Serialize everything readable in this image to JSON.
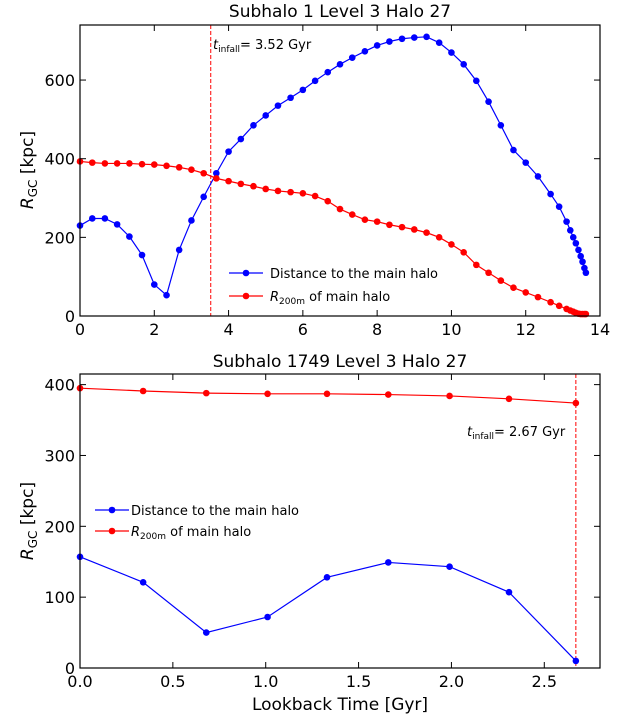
{
  "chart_data": [
    {
      "type": "line",
      "title": "Subhalo 1 Level 3 Halo 27",
      "xlabel": "",
      "ylabel_main": "R",
      "ylabel_sub": "GC",
      "ylabel_rest": " [kpc]",
      "xlim": [
        0,
        14
      ],
      "ylim": [
        0,
        740
      ],
      "xticks": [
        0,
        2,
        4,
        6,
        8,
        10,
        12,
        14
      ],
      "xtick_labels": [
        "0",
        "2",
        "4",
        "6",
        "8",
        "10",
        "12",
        "14"
      ],
      "yticks": [
        0,
        200,
        400,
        600
      ],
      "ytick_labels": [
        "0",
        "200",
        "400",
        "600"
      ],
      "legend_position": "lower-center",
      "infall": {
        "x": 3.52,
        "label_t": "t",
        "label_sub": "infall",
        "label_rest": "= 3.52 Gyr"
      },
      "series": [
        {
          "name": "Distance to the main halo",
          "color": "#0000ff",
          "x": [
            0.0,
            0.33,
            0.67,
            1.0,
            1.33,
            1.67,
            2.0,
            2.33,
            2.67,
            3.0,
            3.33,
            3.67,
            4.0,
            4.33,
            4.67,
            5.0,
            5.33,
            5.67,
            6.0,
            6.33,
            6.67,
            7.0,
            7.33,
            7.67,
            8.0,
            8.33,
            8.67,
            9.0,
            9.33,
            9.67,
            10.0,
            10.33,
            10.67,
            11.0,
            11.33,
            11.67,
            12.0,
            12.33,
            12.67,
            12.9,
            13.1,
            13.2,
            13.28,
            13.35,
            13.42,
            13.48,
            13.53,
            13.58,
            13.62
          ],
          "y": [
            230,
            248,
            248,
            233,
            202,
            155,
            80,
            53,
            168,
            243,
            303,
            363,
            418,
            450,
            485,
            510,
            535,
            555,
            575,
            598,
            620,
            640,
            657,
            673,
            688,
            698,
            705,
            708,
            710,
            695,
            670,
            640,
            598,
            545,
            485,
            422,
            390,
            355,
            310,
            278,
            240,
            218,
            200,
            185,
            168,
            152,
            138,
            122,
            110
          ]
        },
        {
          "name_main": "R",
          "name_sub": "200m",
          "name_rest": " of main halo",
          "color": "#ff0000",
          "x": [
            0.0,
            0.33,
            0.67,
            1.0,
            1.33,
            1.67,
            2.0,
            2.33,
            2.67,
            3.0,
            3.33,
            3.67,
            4.0,
            4.33,
            4.67,
            5.0,
            5.33,
            5.67,
            6.0,
            6.33,
            6.67,
            7.0,
            7.33,
            7.67,
            8.0,
            8.33,
            8.67,
            9.0,
            9.33,
            9.67,
            10.0,
            10.33,
            10.67,
            11.0,
            11.33,
            11.67,
            12.0,
            12.33,
            12.67,
            12.9,
            13.1,
            13.2,
            13.28,
            13.35,
            13.42,
            13.48,
            13.53,
            13.58,
            13.62
          ],
          "y": [
            393,
            390,
            388,
            388,
            388,
            386,
            385,
            382,
            378,
            372,
            363,
            350,
            343,
            336,
            330,
            323,
            318,
            315,
            312,
            305,
            292,
            272,
            258,
            245,
            240,
            232,
            226,
            220,
            212,
            200,
            182,
            162,
            130,
            110,
            90,
            72,
            60,
            48,
            35,
            26,
            18,
            14,
            11,
            8,
            6,
            5,
            5,
            5,
            5
          ]
        }
      ]
    },
    {
      "type": "line",
      "title": "Subhalo 1749 Level 3 Halo 27",
      "xlabel": "Lookback Time [Gyr]",
      "ylabel_main": "R",
      "ylabel_sub": "GC",
      "ylabel_rest": " [kpc]",
      "xlim": [
        0,
        2.8
      ],
      "ylim": [
        0,
        415
      ],
      "xticks": [
        0,
        0.5,
        1.0,
        1.5,
        2.0,
        2.5
      ],
      "xtick_labels": [
        "0.0",
        "0.5",
        "1.0",
        "1.5",
        "2.0",
        "2.5"
      ],
      "yticks": [
        0,
        100,
        200,
        300,
        400
      ],
      "ytick_labels": [
        "0",
        "100",
        "200",
        "300",
        "400"
      ],
      "legend_position": "center-left",
      "infall": {
        "x": 2.67,
        "label_t": "t",
        "label_sub": "infall",
        "label_rest": "= 2.67 Gyr"
      },
      "series": [
        {
          "name": "Distance to the main halo",
          "color": "#0000ff",
          "x": [
            0.0,
            0.34,
            0.68,
            1.01,
            1.33,
            1.66,
            1.99,
            2.31,
            2.67
          ],
          "y": [
            157,
            121,
            50,
            72,
            128,
            149,
            143,
            107,
            10
          ]
        },
        {
          "name_main": "R",
          "name_sub": "200m",
          "name_rest": " of main halo",
          "color": "#ff0000",
          "x": [
            0.0,
            0.34,
            0.68,
            1.01,
            1.33,
            1.66,
            1.99,
            2.31,
            2.67
          ],
          "y": [
            395,
            391,
            388,
            387,
            387,
            386,
            384,
            380,
            374
          ]
        }
      ]
    }
  ]
}
